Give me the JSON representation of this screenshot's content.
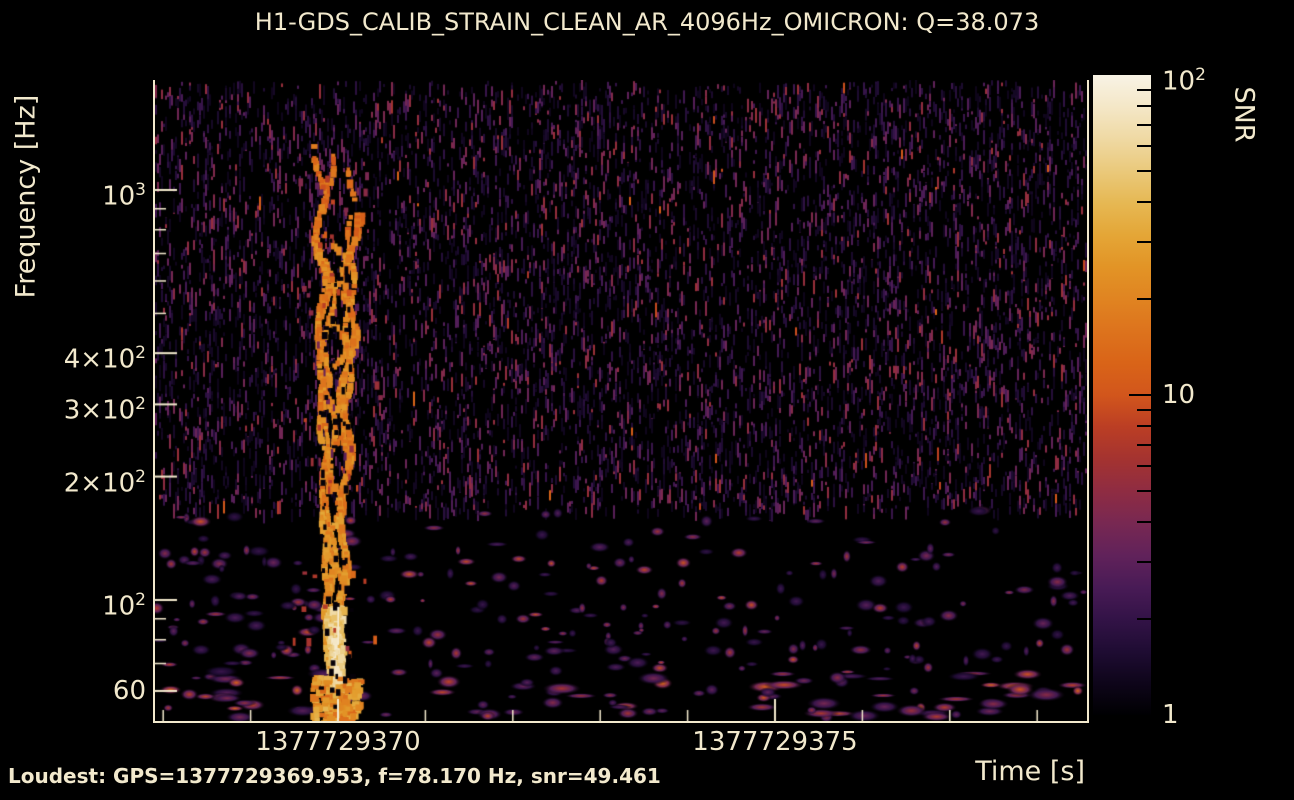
{
  "text_color": "#f2e9cd",
  "background_color": "#000000",
  "footer": {
    "loudest": "Loudest: GPS=1377729369.953, f=78.170 Hz, snr=49.461"
  },
  "chart_data": {
    "type": "heatmap",
    "title": "H1-GDS_CALIB_STRAIN_CLEAN_AR_4096Hz_OMICRON: Q=38.073",
    "channel": "H1-GDS_CALIB_STRAIN_CLEAN_AR_4096Hz_OMICRON",
    "q": 38.073,
    "xlabel": "Time [s]",
    "ylabel": "Frequency [Hz]",
    "yscale": "log",
    "xlim_gps": [
      1377729367.91,
      1377729378.58
    ],
    "ylim_hz": [
      51.6,
      1854
    ],
    "x_major_ticks": [
      {
        "gps": 1377729370,
        "label": "1377729370"
      },
      {
        "gps": 1377729375,
        "label": "1377729375"
      }
    ],
    "x_minor_ticks_gps": [
      1377729368,
      1377729369,
      1377729371,
      1377729372,
      1377729373,
      1377729374,
      1377729376,
      1377729377,
      1377729378
    ],
    "y_major_ticks": [
      {
        "hz": 60,
        "text": "60"
      },
      {
        "hz": 100,
        "text": "10",
        "sup": "2"
      },
      {
        "hz": 200,
        "text": "2×10",
        "sup": "2"
      },
      {
        "hz": 300,
        "text": "3×10",
        "sup": "2"
      },
      {
        "hz": 400,
        "text": "4×10",
        "sup": "2"
      },
      {
        "hz": 1000,
        "text": "10",
        "sup": "3"
      }
    ],
    "y_minor_ticks_hz": [
      70,
      80,
      90,
      500,
      600,
      700,
      800,
      900
    ],
    "colorbar": {
      "label": "SNR",
      "scale": "log",
      "lim": [
        1,
        100
      ],
      "major_ticks": [
        {
          "value": 100,
          "text": "10",
          "sup": "2"
        },
        {
          "value": 10,
          "text": "10"
        },
        {
          "value": 1,
          "text": "1"
        }
      ],
      "minor_ticks": [
        90,
        80,
        70,
        60,
        50,
        40,
        30,
        20,
        9,
        8,
        7,
        6,
        5,
        4,
        3,
        2
      ]
    },
    "colormap_stops": [
      {
        "t": 0.0,
        "color": "#000002"
      },
      {
        "t": 0.05,
        "color": "#0e051a"
      },
      {
        "t": 0.1,
        "color": "#1f0c33"
      },
      {
        "t": 0.15,
        "color": "#331347"
      },
      {
        "t": 0.2,
        "color": "#491b56"
      },
      {
        "t": 0.25,
        "color": "#61225a"
      },
      {
        "t": 0.3,
        "color": "#782852"
      },
      {
        "t": 0.35,
        "color": "#8f2c42"
      },
      {
        "t": 0.4,
        "color": "#a43330"
      },
      {
        "t": 0.45,
        "color": "#bb3e24"
      },
      {
        "t": 0.5,
        "color": "#d2561c"
      },
      {
        "t": 0.55,
        "color": "#d96418"
      },
      {
        "t": 0.6,
        "color": "#dd731d"
      },
      {
        "t": 0.65,
        "color": "#e08421"
      },
      {
        "t": 0.7,
        "color": "#e29426"
      },
      {
        "t": 0.75,
        "color": "#e4a637"
      },
      {
        "t": 0.8,
        "color": "#e6b853"
      },
      {
        "t": 0.85,
        "color": "#eac97b"
      },
      {
        "t": 0.9,
        "color": "#efd9a3"
      },
      {
        "t": 0.95,
        "color": "#f4e7c7"
      },
      {
        "t": 1.0,
        "color": "#f8f3e5"
      }
    ],
    "loudest": {
      "gps": "1377729369.953",
      "frequency_hz": "78.170",
      "snr": "49.461"
    },
    "burst": {
      "center_gps": 1377729369.953,
      "low_freq_hz": 52,
      "high_freq_hz": 1300,
      "peak_freq_hz": 78.17,
      "peak_snr": 49.461
    }
  }
}
